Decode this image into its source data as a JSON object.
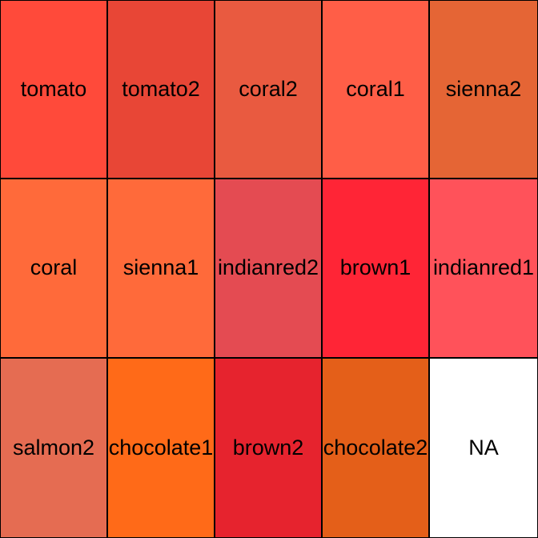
{
  "swatches": [
    {
      "label": "tomato",
      "color": "#FF4A3A"
    },
    {
      "label": "tomato2",
      "color": "#E84636"
    },
    {
      "label": "coral2",
      "color": "#E95A40"
    },
    {
      "label": "coral1",
      "color": "#FF5E47"
    },
    {
      "label": "sienna2",
      "color": "#E56535"
    },
    {
      "label": "coral",
      "color": "#FF6A3A"
    },
    {
      "label": "sienna1",
      "color": "#FF6A3A"
    },
    {
      "label": "indianred2",
      "color": "#E44B52"
    },
    {
      "label": "brown1",
      "color": "#FF2536"
    },
    {
      "label": "indianred1",
      "color": "#FF525A"
    },
    {
      "label": "salmon2",
      "color": "#E56C52"
    },
    {
      "label": "chocolate1",
      "color": "#FF6A18"
    },
    {
      "label": "brown2",
      "color": "#E6232E"
    },
    {
      "label": "chocolate2",
      "color": "#E45F19"
    },
    {
      "label": "NA",
      "color": "#FFFFFF"
    }
  ]
}
